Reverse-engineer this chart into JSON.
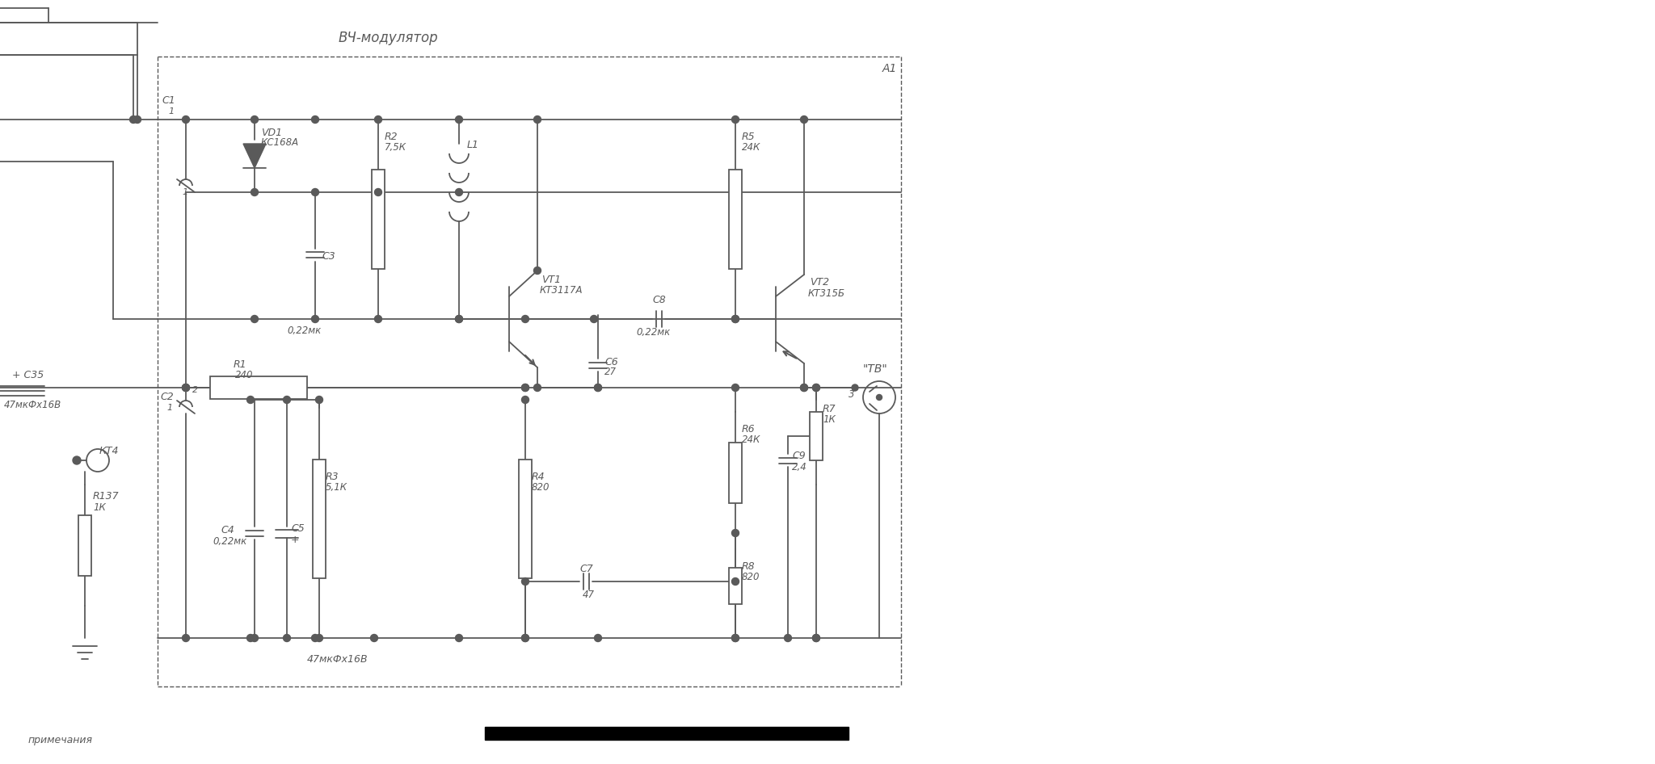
{
  "bg_color": "#ffffff",
  "line_color": "#5a5a5a",
  "text_color": "#5a5a5a",
  "title": "ВЧ-модулятор",
  "label_A1": "А1",
  "figsize": [
    20.48,
    9.46
  ],
  "dpi": 100,
  "note": "примечания",
  "label_47mk": "47мкФх16В",
  "label_bot": "47мкФх16В"
}
